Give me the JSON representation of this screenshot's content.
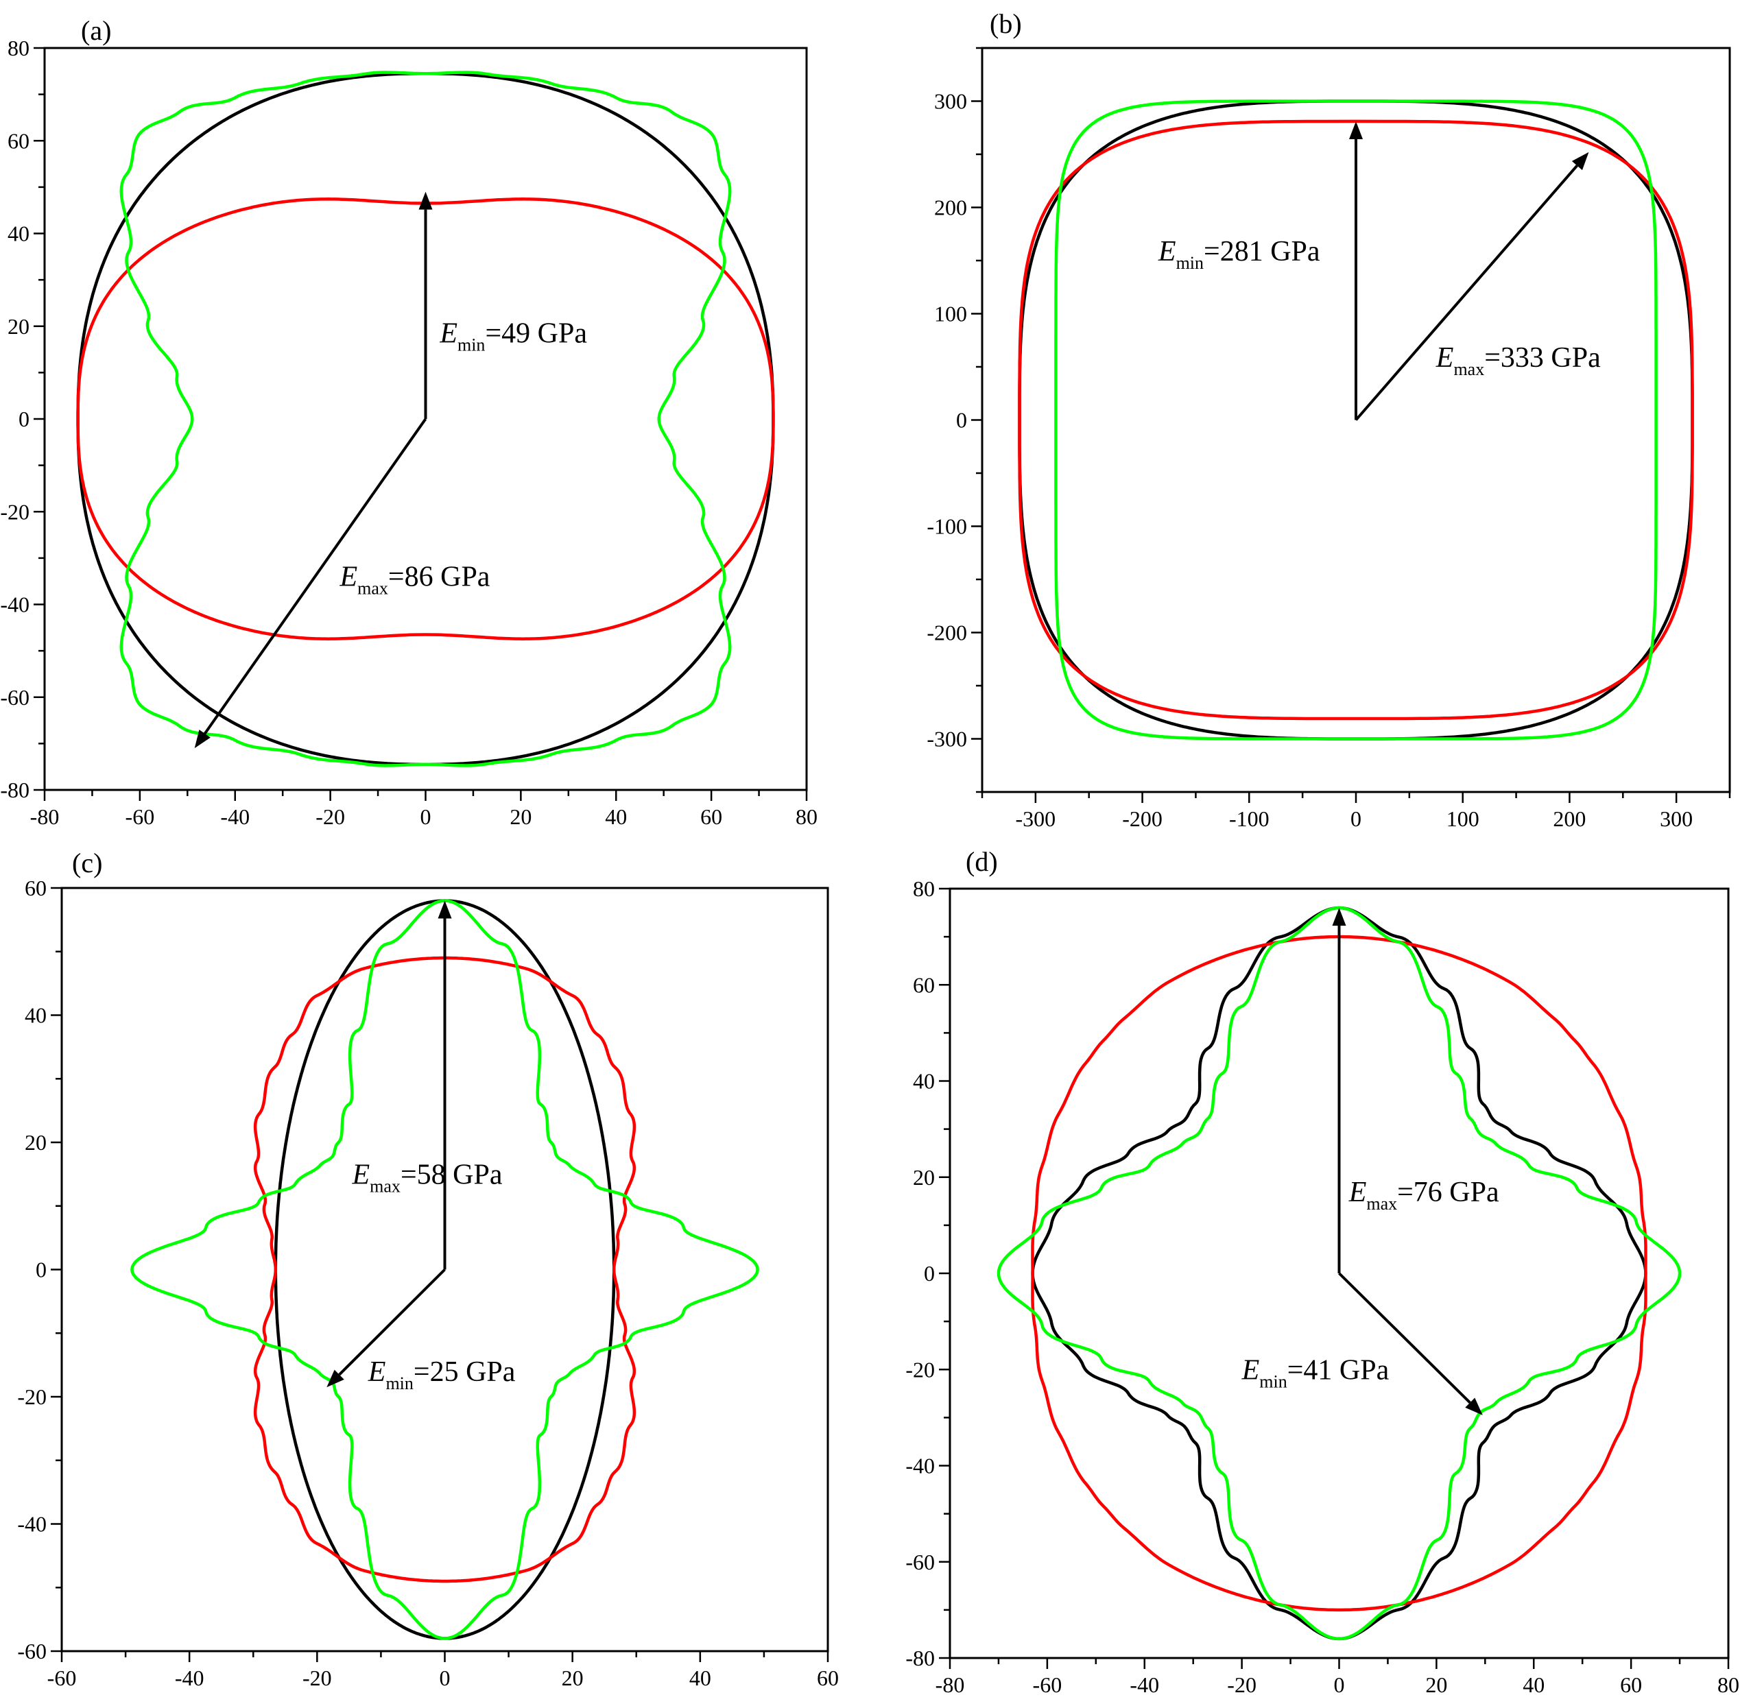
{
  "series_colors": {
    "black": "#000000",
    "red": "#ff0000",
    "green": "#00ff00"
  },
  "chart_data": [
    {
      "type": "line",
      "panel_label": "(a)",
      "xlim": [
        -80,
        80
      ],
      "ylim": [
        -80,
        80
      ],
      "xticks": [
        -80,
        -60,
        -40,
        -20,
        0,
        20,
        40,
        60,
        80
      ],
      "yticks": [
        -80,
        -60,
        -40,
        -20,
        0,
        20,
        40,
        60,
        80
      ],
      "series": [
        {
          "color": "black",
          "curve": {
            "kind": "superellipse",
            "a": 73,
            "b": 74.5,
            "n": 2.3
          }
        },
        {
          "color": "red",
          "curve": {
            "kind": "superellipse",
            "a": 73,
            "b": 49,
            "n": 2.6,
            "bump": 2.5
          }
        },
        {
          "color": "green",
          "curve": {
            "kind": "polar",
            "points": [
              [
                0,
                49
              ],
              [
                10,
                53
              ],
              [
                20,
                62
              ],
              [
                30,
                72
              ],
              [
                40,
                82
              ],
              [
                46,
                86
              ],
              [
                52,
                84
              ],
              [
                60,
                80
              ],
              [
                70,
                77
              ],
              [
                80,
                75.5
              ],
              [
                90,
                74.5
              ]
            ]
          }
        }
      ],
      "arrows": [
        {
          "from": [
            0,
            0
          ],
          "to": [
            0,
            49
          ]
        },
        {
          "from": [
            0,
            0
          ],
          "to": [
            -48.5,
            -71
          ]
        }
      ],
      "annotations": [
        {
          "base": "E",
          "sub": "min",
          "text": "=49 GPa",
          "at": [
            3,
            16.5
          ]
        },
        {
          "base": "E",
          "sub": "max",
          "text": "=86 GPa",
          "at": [
            -18,
            -36
          ]
        }
      ]
    },
    {
      "type": "line",
      "panel_label": "(b)",
      "xlim": [
        -350,
        350
      ],
      "ylim": [
        -350,
        350
      ],
      "xticks": [
        -300,
        -200,
        -100,
        0,
        100,
        200,
        300
      ],
      "yticks": [
        -300,
        -200,
        -100,
        0,
        100,
        200,
        300
      ],
      "series": [
        {
          "color": "black",
          "curve": {
            "kind": "superellipse",
            "a": 315,
            "b": 300,
            "n": 3.2
          }
        },
        {
          "color": "red",
          "curve": {
            "kind": "superellipse",
            "a": 315,
            "b": 281,
            "n": 3.8
          }
        },
        {
          "color": "green",
          "curve": {
            "kind": "superellipse",
            "a": 281,
            "b": 300,
            "n": 7
          }
        }
      ],
      "arrows": [
        {
          "from": [
            0,
            0
          ],
          "to": [
            0,
            281
          ]
        },
        {
          "from": [
            0,
            0
          ],
          "to": [
            218,
            252
          ]
        }
      ],
      "annotations": [
        {
          "base": "E",
          "sub": "min",
          "text": "=281 GPa",
          "at": [
            -185,
            150
          ]
        },
        {
          "base": "E",
          "sub": "max",
          "text": "=333 GPa",
          "at": [
            75,
            50
          ]
        }
      ]
    },
    {
      "type": "line",
      "panel_label": "(c)",
      "xlim": [
        -60,
        60
      ],
      "ylim": [
        -60,
        60
      ],
      "xticks": [
        -60,
        -40,
        -20,
        0,
        20,
        40,
        60
      ],
      "yticks": [
        -60,
        -40,
        -20,
        0,
        20,
        40,
        60
      ],
      "series": [
        {
          "color": "black",
          "curve": {
            "kind": "superellipse",
            "a": 26.5,
            "b": 58,
            "n": 2
          }
        },
        {
          "color": "red",
          "curve": {
            "kind": "polar",
            "points": [
              [
                0,
                26.5
              ],
              [
                10,
                27.5
              ],
              [
                20,
                30
              ],
              [
                30,
                34
              ],
              [
                40,
                38
              ],
              [
                50,
                41.5
              ],
              [
                57,
                44
              ],
              [
                65,
                47.5
              ],
              [
                75,
                49
              ],
              [
                90,
                49
              ]
            ]
          }
        },
        {
          "color": "green",
          "curve": {
            "kind": "polar",
            "points": [
              [
                0,
                49
              ],
              [
                10,
                38
              ],
              [
                20,
                31
              ],
              [
                30,
                27
              ],
              [
                40,
                25.5
              ],
              [
                45,
                25
              ],
              [
                50,
                26
              ],
              [
                60,
                30
              ],
              [
                70,
                40
              ],
              [
                80,
                52
              ],
              [
                90,
                58
              ]
            ]
          }
        }
      ],
      "arrows": [
        {
          "from": [
            0,
            0
          ],
          "to": [
            0,
            58
          ]
        },
        {
          "from": [
            0,
            0
          ],
          "to": [
            -18.5,
            -18.5
          ]
        }
      ],
      "annotations": [
        {
          "base": "E",
          "sub": "max",
          "text": "=58 GPa",
          "at": [
            -14.5,
            13.5
          ]
        },
        {
          "base": "E",
          "sub": "min",
          "text": "=25 GPa",
          "at": [
            -12,
            -17.5
          ]
        }
      ]
    },
    {
      "type": "line",
      "panel_label": "(d)",
      "xlim": [
        -80,
        80
      ],
      "ylim": [
        -80,
        80
      ],
      "xticks": [
        -80,
        -60,
        -40,
        -20,
        0,
        20,
        40,
        60,
        80
      ],
      "yticks": [
        -80,
        -60,
        -40,
        -20,
        0,
        20,
        40,
        60,
        80
      ],
      "series": [
        {
          "color": "black",
          "curve": {
            "kind": "polar",
            "points": [
              [
                0,
                63
              ],
              [
                10,
                60
              ],
              [
                20,
                56
              ],
              [
                30,
                50
              ],
              [
                40,
                46
              ],
              [
                45,
                45
              ],
              [
                50,
                46
              ],
              [
                60,
                54
              ],
              [
                70,
                63
              ],
              [
                80,
                71
              ],
              [
                90,
                76
              ]
            ]
          }
        },
        {
          "color": "red",
          "curve": {
            "kind": "polar",
            "points": [
              [
                0,
                63
              ],
              [
                10,
                63.5
              ],
              [
                20,
                65
              ],
              [
                30,
                66.5
              ],
              [
                40,
                68
              ],
              [
                45,
                68.5
              ],
              [
                50,
                69
              ],
              [
                60,
                70
              ],
              [
                70,
                70
              ],
              [
                80,
                70
              ],
              [
                90,
                70
              ]
            ]
          }
        },
        {
          "color": "green",
          "curve": {
            "kind": "polar",
            "points": [
              [
                0,
                70
              ],
              [
                10,
                62
              ],
              [
                20,
                52
              ],
              [
                30,
                45
              ],
              [
                40,
                42
              ],
              [
                45,
                41
              ],
              [
                50,
                42
              ],
              [
                60,
                48
              ],
              [
                70,
                59
              ],
              [
                80,
                70
              ],
              [
                90,
                76
              ]
            ]
          }
        }
      ],
      "arrows": [
        {
          "from": [
            0,
            0
          ],
          "to": [
            0,
            76
          ]
        },
        {
          "from": [
            0,
            0
          ],
          "to": [
            29.5,
            -29.5
          ]
        }
      ],
      "annotations": [
        {
          "base": "E",
          "sub": "max",
          "text": "=76 GPa",
          "at": [
            2,
            15
          ]
        },
        {
          "base": "E",
          "sub": "min",
          "text": "=41 GPa",
          "at": [
            -20,
            -22
          ]
        }
      ]
    }
  ]
}
